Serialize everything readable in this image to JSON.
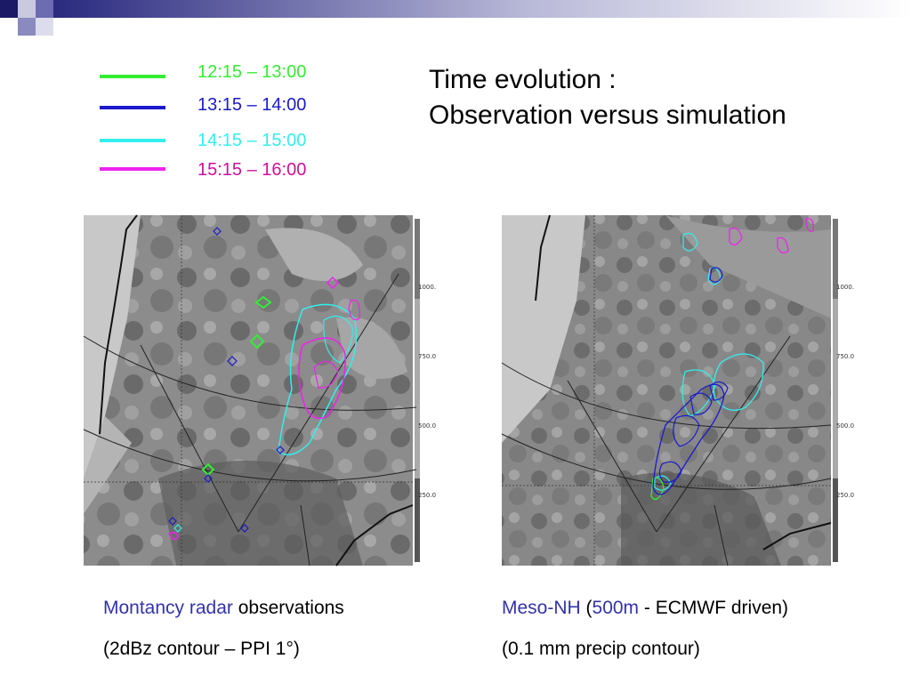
{
  "colors": {
    "green": "#33ee33",
    "blue": "#1a1acc",
    "cyan": "#33eeee",
    "magenta": "#ee22ee",
    "header_navy": "#1a1a66",
    "caption_blue": "#3333aa"
  },
  "legend": [
    {
      "label": "12:15 – 13:00",
      "color": "#33ee33"
    },
    {
      "label": "13:15 – 14:00",
      "color": "#1a1acc"
    },
    {
      "label": "14:15 – 15:00",
      "color": "#33eeee"
    },
    {
      "label": "15:15 – 16:00",
      "color": "#ee22ee"
    }
  ],
  "title": {
    "line1": "Time evolution :",
    "line2": "Observation versus simulation"
  },
  "left_panel": {
    "colorbar_ticks": [
      "1000.",
      "750.0",
      "500.0",
      "250.0"
    ],
    "caption": {
      "name": "Montancy radar",
      "rest": " observations",
      "line2": "(2dBz contour – PPI 1°)"
    }
  },
  "right_panel": {
    "colorbar_ticks": [
      "1000.",
      "750.0",
      "500.0",
      "250.0"
    ],
    "caption": {
      "name": "Meso-NH",
      "open": " (",
      "res": "500m",
      "rest": " - ECMWF driven)",
      "line2": "(0.1 mm  precip contour)"
    }
  }
}
